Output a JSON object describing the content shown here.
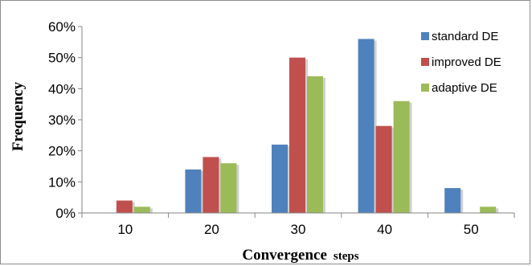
{
  "chart_data": {
    "type": "bar",
    "categories": [
      "10",
      "20",
      "30",
      "40",
      "50"
    ],
    "series": [
      {
        "name": "standard DE",
        "color": "#4F81BD",
        "values": [
          0,
          14,
          22,
          56,
          8
        ]
      },
      {
        "name": "improved DE",
        "color": "#C0504D",
        "values": [
          4,
          18,
          50,
          28,
          0
        ]
      },
      {
        "name": "adaptive DE",
        "color": "#9BBB59",
        "values": [
          2,
          16,
          44,
          36,
          2
        ]
      }
    ],
    "xlabel_main": "Convergence",
    "xlabel_unit": "steps",
    "ylabel": "Frequency",
    "ylim": [
      0,
      60
    ],
    "yticks": [
      0,
      10,
      20,
      30,
      40,
      50,
      60
    ],
    "ytick_format": "%",
    "grid": false,
    "legend_position": "top-right"
  }
}
